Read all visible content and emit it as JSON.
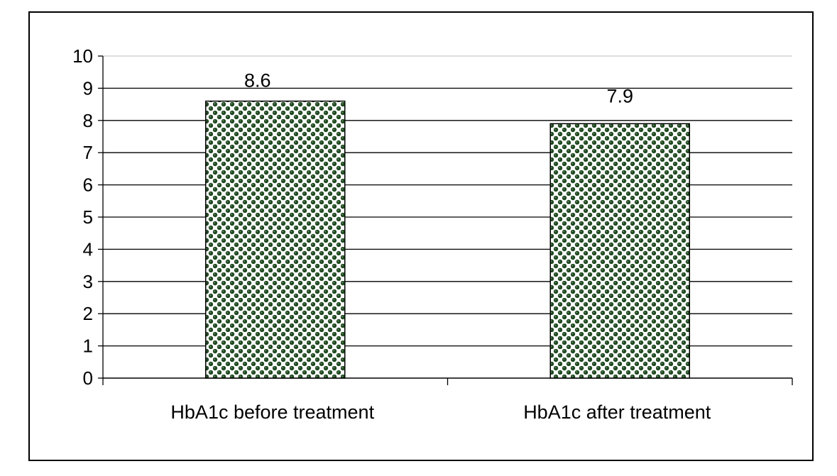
{
  "chart_data": {
    "type": "bar",
    "categories": [
      "HbA1c before treatment",
      "HbA1c after treatment"
    ],
    "values": [
      8.6,
      7.9
    ],
    "data_labels": [
      "8.6",
      "7.9"
    ],
    "y_ticks": [
      "0",
      "1",
      "2",
      "3",
      "4",
      "5",
      "6",
      "7",
      "8",
      "9",
      "10"
    ],
    "ylim": [
      0,
      10
    ],
    "grid": true,
    "legend": "none",
    "colors": {
      "bar_dark": "#1f4a1f",
      "bar_light": "#ffffff",
      "bar_border": "#000000",
      "gridline": "#000000"
    }
  }
}
